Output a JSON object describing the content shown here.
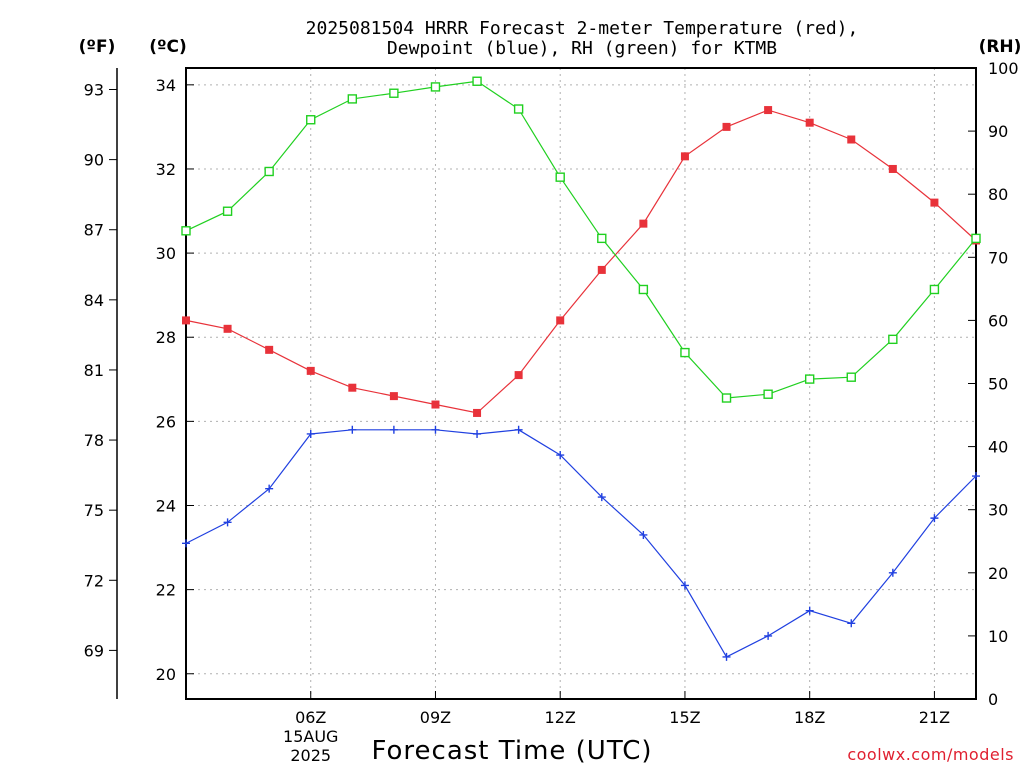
{
  "chart_data": {
    "type": "line",
    "title": [
      "2025081504 HRRR Forecast 2-meter Temperature (red),",
      "Dewpoint (blue), RH (green) for KTMB"
    ],
    "xlabel": "Forecast Time (UTC)",
    "x_hours": [
      3,
      4,
      5,
      6,
      7,
      8,
      9,
      10,
      11,
      12,
      13,
      14,
      15,
      16,
      17,
      18,
      19,
      20,
      21,
      22
    ],
    "xlim": [
      3,
      22
    ],
    "x_ticks": [
      {
        "hour": 6,
        "label": "06Z",
        "sub": [
          "15AUG",
          "2025"
        ]
      },
      {
        "hour": 9,
        "label": "09Z",
        "sub": []
      },
      {
        "hour": 12,
        "label": "12Z",
        "sub": []
      },
      {
        "hour": 15,
        "label": "15Z",
        "sub": []
      },
      {
        "hour": 18,
        "label": "18Z",
        "sub": []
      },
      {
        "hour": 21,
        "label": "21Z",
        "sub": []
      }
    ],
    "axes": {
      "f_unit": "(ºF)",
      "c_unit": "(ºC)",
      "rh_unit": "(RH)",
      "c_lim": [
        19.4,
        34.4
      ],
      "f_ticks": [
        69,
        72,
        75,
        78,
        81,
        84,
        87,
        90,
        93
      ],
      "c_ticks": [
        20,
        22,
        24,
        26,
        28,
        30,
        32,
        34
      ],
      "rh_lim": [
        0,
        100
      ],
      "rh_ticks": [
        0,
        10,
        20,
        30,
        40,
        50,
        60,
        70,
        80,
        90,
        100
      ]
    },
    "grid": true,
    "series": [
      {
        "color": "#e8323a",
        "marker": "filled-square",
        "axis": "c",
        "values": [
          28.4,
          28.2,
          27.7,
          27.2,
          26.8,
          26.6,
          26.4,
          26.2,
          27.1,
          28.4,
          29.6,
          30.7,
          32.3,
          33.0,
          33.4,
          33.1,
          32.7,
          32.0,
          31.2,
          30.3
        ]
      },
      {
        "color": "#2040e0",
        "marker": "plus",
        "axis": "c",
        "values": [
          23.1,
          23.6,
          24.4,
          25.7,
          25.8,
          25.8,
          25.8,
          25.7,
          25.8,
          25.2,
          24.2,
          23.3,
          22.1,
          20.4,
          20.9,
          21.5,
          21.2,
          22.4,
          23.7,
          24.7
        ]
      },
      {
        "color": "#20d020",
        "marker": "open-square",
        "axis": "rh",
        "values": [
          74.2,
          77.3,
          83.6,
          91.8,
          95.1,
          96.0,
          97.0,
          97.9,
          93.5,
          82.7,
          73.0,
          64.9,
          54.9,
          47.7,
          48.3,
          50.7,
          51.0,
          57.0,
          64.9,
          73.0
        ]
      }
    ]
  },
  "footer": {
    "credit": "coolwx.com/models"
  }
}
